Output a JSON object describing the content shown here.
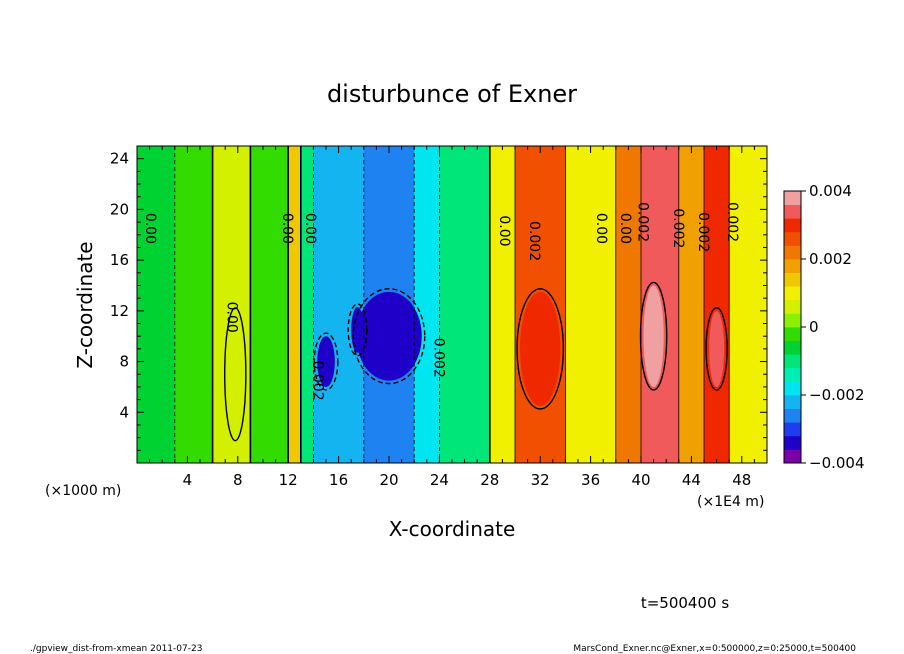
{
  "chart_data": {
    "type": "heatmap",
    "title": "disturbunce of Exner",
    "xlabel": "X-coordinate",
    "ylabel": "Z-coordinate",
    "x_unit_left": "(×1000 m)",
    "x_unit_right": "(×1E4 m)",
    "xlim": [
      0,
      50
    ],
    "ylim": [
      0,
      25
    ],
    "x_ticks": [
      4,
      8,
      12,
      16,
      20,
      24,
      28,
      32,
      36,
      40,
      44,
      48
    ],
    "y_ticks": [
      4,
      8,
      12,
      16,
      20,
      24
    ],
    "colorbar": {
      "min": -0.004,
      "max": 0.004,
      "step": 0.0004,
      "tick_values": [
        0.004,
        0.002,
        0,
        -0.002,
        -0.004
      ],
      "tick_labels": [
        "0.004",
        "0.002",
        "0",
        "−0.002",
        "−0.004"
      ],
      "colors": [
        "#7a00a8",
        "#1e00c8",
        "#1e3cf0",
        "#1e82f0",
        "#14b4f0",
        "#00e6f0",
        "#00f0b4",
        "#00e678",
        "#00d232",
        "#32dc00",
        "#8cf000",
        "#d2f000",
        "#f0f000",
        "#f0c800",
        "#f0a000",
        "#f07800",
        "#f05000",
        "#f02800",
        "#f05a5a",
        "#f0a0a0"
      ]
    },
    "regions": [
      {
        "x": [
          0,
          3
        ],
        "value": -0.0008
      },
      {
        "x": [
          3,
          6
        ],
        "value": -0.0002
      },
      {
        "x": [
          6,
          9
        ],
        "value": 0.0004
      },
      {
        "x": [
          9,
          12
        ],
        "value": -0.0004
      },
      {
        "x": [
          12,
          13
        ],
        "value": 0.0014
      },
      {
        "x": [
          13,
          14
        ],
        "value": -0.0012
      },
      {
        "x": [
          14,
          18
        ],
        "value": -0.0024
      },
      {
        "x": [
          18,
          22
        ],
        "value": -0.0028
      },
      {
        "x": [
          22,
          24
        ],
        "value": -0.002
      },
      {
        "x": [
          24,
          28
        ],
        "value": -0.0012
      },
      {
        "x": [
          28,
          30
        ],
        "value": 0.0012
      },
      {
        "x": [
          30,
          34
        ],
        "value": 0.0026
      },
      {
        "x": [
          34,
          38
        ],
        "value": 0.0012
      },
      {
        "x": [
          38,
          40
        ],
        "value": 0.002
      },
      {
        "x": [
          40,
          43
        ],
        "value": 0.0032
      },
      {
        "x": [
          43,
          45
        ],
        "value": 0.0016
      },
      {
        "x": [
          45,
          47
        ],
        "value": 0.0028
      },
      {
        "x": [
          47,
          50
        ],
        "value": 0.001
      }
    ],
    "blobs": [
      {
        "x": 20,
        "z": 10,
        "rx": 2.6,
        "rz": 3.5,
        "value": -0.0034
      },
      {
        "x": 15,
        "z": 8,
        "rx": 0.7,
        "rz": 2.0,
        "value": -0.0034
      },
      {
        "x": 17.5,
        "z": 10.5,
        "rx": 0.5,
        "rz": 1.8,
        "value": -0.0034
      },
      {
        "x": 32,
        "z": 9,
        "rx": 1.6,
        "rz": 4.5,
        "value": 0.003
      },
      {
        "x": 41,
        "z": 10,
        "rx": 0.8,
        "rz": 4.0,
        "value": 0.0036
      },
      {
        "x": 46,
        "z": 9,
        "rx": 0.6,
        "rz": 3.0,
        "value": 0.0032
      },
      {
        "x": 7.8,
        "z": 7,
        "rx": 0.6,
        "rz": 5.0,
        "value": 0.0006
      }
    ],
    "contour_labels": [
      {
        "x": 0.7,
        "z": 18.5,
        "text": "0.00"
      },
      {
        "x": 11.6,
        "z": 18.5,
        "text": "0.00"
      },
      {
        "x": 13.4,
        "z": 18.5,
        "text": "0.00"
      },
      {
        "x": 7.2,
        "z": 11.5,
        "text": "0.00"
      },
      {
        "x": 14,
        "z": 6.5,
        "text": "0.002"
      },
      {
        "x": 23.6,
        "z": 8.3,
        "text": "0.002"
      },
      {
        "x": 28.8,
        "z": 18.3,
        "text": "0.00"
      },
      {
        "x": 31.2,
        "z": 17.5,
        "text": "0.002"
      },
      {
        "x": 36.5,
        "z": 18.5,
        "text": "0.00"
      },
      {
        "x": 38.4,
        "z": 18.5,
        "text": "0.00"
      },
      {
        "x": 39.8,
        "z": 19,
        "text": "0.002"
      },
      {
        "x": 42.6,
        "z": 18.5,
        "text": "0.002"
      },
      {
        "x": 44.6,
        "z": 18.2,
        "text": "0.002"
      },
      {
        "x": 46.9,
        "z": 19,
        "text": "0.002"
      }
    ],
    "time_label": "t=500400 s"
  },
  "footer": {
    "left": "./gpview_dist-from-xmean  2011-07-23",
    "right": "MarsCond_Exner.nc@Exner,x=0:500000,z=0:25000,t=500400"
  }
}
